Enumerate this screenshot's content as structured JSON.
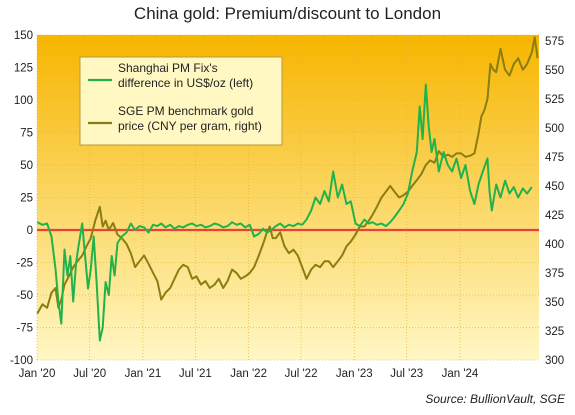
{
  "title": "China gold: Premium/discount  to London",
  "source": "Source: BullionVault, SGE",
  "chart_data": {
    "type": "line",
    "title": "China gold: Premium/discount  to London",
    "x_range": [
      "2020-01-01",
      "2024-09-30"
    ],
    "x_ticks": [
      "Jan '20",
      "Jul '20",
      "Jan '21",
      "Jul '21",
      "Jan '22",
      "Jul '22",
      "Jan '23",
      "Jul '23",
      "Jan '24"
    ],
    "x_tick_dates": [
      "2020-01-01",
      "2020-07-01",
      "2021-01-01",
      "2021-07-01",
      "2022-01-01",
      "2022-07-01",
      "2023-01-01",
      "2023-07-01",
      "2024-01-01"
    ],
    "y_left": {
      "min": -100,
      "max": 150,
      "ticks": [
        150,
        125,
        100,
        75,
        50,
        25,
        0,
        -25,
        -50,
        -75,
        -100
      ]
    },
    "y_right": {
      "min": 300,
      "max": 580,
      "ticks": [
        575,
        550,
        525,
        500,
        475,
        450,
        425,
        400,
        375,
        350,
        325,
        300
      ]
    },
    "zero_line": {
      "value": 0,
      "color": "#e8423a"
    },
    "background_gradient": [
      "#f7b500",
      "#fff7c4"
    ],
    "series": [
      {
        "name": "Shanghai PM Fix's difference in US$/oz (left)",
        "legend_lines": [
          "Shanghai PM Fix's",
          "difference in US$/oz (left)"
        ],
        "axis": "left",
        "color": "#22b24c",
        "points": [
          [
            "2020-01-02",
            6
          ],
          [
            "2020-01-20",
            4
          ],
          [
            "2020-02-05",
            5
          ],
          [
            "2020-02-20",
            -5
          ],
          [
            "2020-03-05",
            -30
          ],
          [
            "2020-03-15",
            -55
          ],
          [
            "2020-03-25",
            -72
          ],
          [
            "2020-04-05",
            -15
          ],
          [
            "2020-04-15",
            -35
          ],
          [
            "2020-04-25",
            -20
          ],
          [
            "2020-05-05",
            -55
          ],
          [
            "2020-05-15",
            -25
          ],
          [
            "2020-05-25",
            -10
          ],
          [
            "2020-06-05",
            5
          ],
          [
            "2020-06-15",
            -20
          ],
          [
            "2020-06-25",
            -45
          ],
          [
            "2020-07-05",
            -30
          ],
          [
            "2020-07-15",
            -5
          ],
          [
            "2020-07-25",
            -40
          ],
          [
            "2020-08-05",
            -85
          ],
          [
            "2020-08-15",
            -75
          ],
          [
            "2020-08-25",
            -40
          ],
          [
            "2020-09-05",
            -50
          ],
          [
            "2020-09-15",
            -20
          ],
          [
            "2020-09-25",
            -35
          ],
          [
            "2020-10-05",
            -10
          ],
          [
            "2020-10-20",
            -5
          ],
          [
            "2020-11-05",
            -2
          ],
          [
            "2020-11-20",
            5
          ],
          [
            "2020-12-05",
            0
          ],
          [
            "2020-12-20",
            3
          ],
          [
            "2021-01-05",
            2
          ],
          [
            "2021-01-20",
            -2
          ],
          [
            "2021-02-05",
            4
          ],
          [
            "2021-02-20",
            3
          ],
          [
            "2021-03-05",
            5
          ],
          [
            "2021-03-20",
            2
          ],
          [
            "2021-04-05",
            4
          ],
          [
            "2021-04-20",
            1
          ],
          [
            "2021-05-05",
            3
          ],
          [
            "2021-05-20",
            2
          ],
          [
            "2021-06-05",
            4
          ],
          [
            "2021-06-20",
            5
          ],
          [
            "2021-07-05",
            3
          ],
          [
            "2021-07-20",
            4
          ],
          [
            "2021-08-05",
            2
          ],
          [
            "2021-08-20",
            3
          ],
          [
            "2021-09-05",
            5
          ],
          [
            "2021-09-20",
            4
          ],
          [
            "2021-10-05",
            2
          ],
          [
            "2021-10-20",
            3
          ],
          [
            "2021-11-05",
            6
          ],
          [
            "2021-11-20",
            4
          ],
          [
            "2021-12-05",
            5
          ],
          [
            "2021-12-20",
            2
          ],
          [
            "2022-01-05",
            4
          ],
          [
            "2022-01-20",
            -5
          ],
          [
            "2022-02-05",
            -3
          ],
          [
            "2022-02-20",
            1
          ],
          [
            "2022-03-05",
            -2
          ],
          [
            "2022-03-20",
            0
          ],
          [
            "2022-04-05",
            3
          ],
          [
            "2022-04-20",
            5
          ],
          [
            "2022-05-05",
            2
          ],
          [
            "2022-05-20",
            4
          ],
          [
            "2022-06-05",
            3
          ],
          [
            "2022-06-20",
            5
          ],
          [
            "2022-07-05",
            4
          ],
          [
            "2022-07-20",
            8
          ],
          [
            "2022-08-05",
            15
          ],
          [
            "2022-08-20",
            25
          ],
          [
            "2022-09-05",
            20
          ],
          [
            "2022-09-20",
            30
          ],
          [
            "2022-10-05",
            22
          ],
          [
            "2022-10-20",
            45
          ],
          [
            "2022-11-05",
            25
          ],
          [
            "2022-11-20",
            35
          ],
          [
            "2022-12-05",
            20
          ],
          [
            "2022-12-20",
            22
          ],
          [
            "2023-01-05",
            5
          ],
          [
            "2023-01-20",
            3
          ],
          [
            "2023-02-05",
            8
          ],
          [
            "2023-02-20",
            5
          ],
          [
            "2023-03-05",
            6
          ],
          [
            "2023-03-20",
            4
          ],
          [
            "2023-04-05",
            5
          ],
          [
            "2023-04-20",
            3
          ],
          [
            "2023-05-05",
            6
          ],
          [
            "2023-05-20",
            10
          ],
          [
            "2023-06-05",
            15
          ],
          [
            "2023-06-20",
            20
          ],
          [
            "2023-07-05",
            28
          ],
          [
            "2023-07-20",
            45
          ],
          [
            "2023-08-05",
            60
          ],
          [
            "2023-08-15",
            95
          ],
          [
            "2023-08-25",
            70
          ],
          [
            "2023-09-05",
            112
          ],
          [
            "2023-09-15",
            80
          ],
          [
            "2023-09-25",
            60
          ],
          [
            "2023-10-05",
            70
          ],
          [
            "2023-10-20",
            45
          ],
          [
            "2023-11-05",
            60
          ],
          [
            "2023-11-20",
            50
          ],
          [
            "2023-12-05",
            45
          ],
          [
            "2023-12-20",
            55
          ],
          [
            "2024-01-05",
            40
          ],
          [
            "2024-01-20",
            50
          ],
          [
            "2024-02-05",
            30
          ],
          [
            "2024-02-20",
            20
          ],
          [
            "2024-03-05",
            35
          ],
          [
            "2024-03-20",
            45
          ],
          [
            "2024-04-05",
            55
          ],
          [
            "2024-04-12",
            30
          ],
          [
            "2024-04-20",
            15
          ],
          [
            "2024-05-05",
            35
          ],
          [
            "2024-05-20",
            25
          ],
          [
            "2024-06-05",
            38
          ],
          [
            "2024-06-20",
            28
          ],
          [
            "2024-07-05",
            33
          ],
          [
            "2024-07-20",
            25
          ],
          [
            "2024-08-05",
            32
          ],
          [
            "2024-08-20",
            28
          ],
          [
            "2024-09-05",
            33
          ]
        ]
      },
      {
        "name": "SGE PM benchmark gold price (CNY per gram, right)",
        "legend_lines": [
          "SGE PM benchmark gold",
          "price (CNY per gram, right)"
        ],
        "axis": "right",
        "color": "#8a7d12",
        "points": [
          [
            "2020-01-02",
            340
          ],
          [
            "2020-01-20",
            348
          ],
          [
            "2020-02-05",
            345
          ],
          [
            "2020-02-20",
            358
          ],
          [
            "2020-03-05",
            362
          ],
          [
            "2020-03-15",
            345
          ],
          [
            "2020-03-25",
            352
          ],
          [
            "2020-04-05",
            365
          ],
          [
            "2020-04-20",
            372
          ],
          [
            "2020-05-05",
            380
          ],
          [
            "2020-05-20",
            385
          ],
          [
            "2020-06-05",
            390
          ],
          [
            "2020-06-20",
            398
          ],
          [
            "2020-07-05",
            405
          ],
          [
            "2020-07-20",
            420
          ],
          [
            "2020-08-05",
            432
          ],
          [
            "2020-08-15",
            415
          ],
          [
            "2020-08-25",
            420
          ],
          [
            "2020-09-05",
            412
          ],
          [
            "2020-09-20",
            418
          ],
          [
            "2020-10-05",
            408
          ],
          [
            "2020-10-20",
            405
          ],
          [
            "2020-11-05",
            400
          ],
          [
            "2020-11-20",
            392
          ],
          [
            "2020-12-05",
            380
          ],
          [
            "2020-12-20",
            385
          ],
          [
            "2021-01-05",
            390
          ],
          [
            "2021-01-20",
            383
          ],
          [
            "2021-02-05",
            375
          ],
          [
            "2021-02-20",
            368
          ],
          [
            "2021-03-05",
            352
          ],
          [
            "2021-03-20",
            358
          ],
          [
            "2021-04-05",
            362
          ],
          [
            "2021-04-20",
            370
          ],
          [
            "2021-05-05",
            378
          ],
          [
            "2021-05-20",
            382
          ],
          [
            "2021-06-05",
            380
          ],
          [
            "2021-06-20",
            370
          ],
          [
            "2021-07-05",
            372
          ],
          [
            "2021-07-20",
            365
          ],
          [
            "2021-08-05",
            368
          ],
          [
            "2021-08-20",
            362
          ],
          [
            "2021-09-05",
            365
          ],
          [
            "2021-09-20",
            370
          ],
          [
            "2021-10-05",
            362
          ],
          [
            "2021-10-20",
            368
          ],
          [
            "2021-11-05",
            378
          ],
          [
            "2021-11-20",
            375
          ],
          [
            "2021-12-05",
            370
          ],
          [
            "2021-12-20",
            372
          ],
          [
            "2022-01-05",
            375
          ],
          [
            "2022-01-20",
            380
          ],
          [
            "2022-02-05",
            390
          ],
          [
            "2022-02-20",
            400
          ],
          [
            "2022-03-05",
            410
          ],
          [
            "2022-03-15",
            415
          ],
          [
            "2022-03-25",
            405
          ],
          [
            "2022-04-05",
            405
          ],
          [
            "2022-04-20",
            410
          ],
          [
            "2022-05-05",
            398
          ],
          [
            "2022-05-20",
            392
          ],
          [
            "2022-06-05",
            395
          ],
          [
            "2022-06-20",
            390
          ],
          [
            "2022-07-05",
            380
          ],
          [
            "2022-07-20",
            370
          ],
          [
            "2022-08-05",
            378
          ],
          [
            "2022-08-20",
            382
          ],
          [
            "2022-09-05",
            380
          ],
          [
            "2022-09-20",
            385
          ],
          [
            "2022-10-05",
            385
          ],
          [
            "2022-10-20",
            380
          ],
          [
            "2022-11-05",
            385
          ],
          [
            "2022-11-20",
            390
          ],
          [
            "2022-12-05",
            398
          ],
          [
            "2022-12-20",
            402
          ],
          [
            "2023-01-05",
            408
          ],
          [
            "2023-01-20",
            415
          ],
          [
            "2023-02-05",
            415
          ],
          [
            "2023-02-20",
            420
          ],
          [
            "2023-03-05",
            425
          ],
          [
            "2023-03-20",
            432
          ],
          [
            "2023-04-05",
            440
          ],
          [
            "2023-04-20",
            445
          ],
          [
            "2023-05-05",
            450
          ],
          [
            "2023-05-20",
            445
          ],
          [
            "2023-06-05",
            440
          ],
          [
            "2023-06-20",
            442
          ],
          [
            "2023-07-05",
            445
          ],
          [
            "2023-07-20",
            450
          ],
          [
            "2023-08-05",
            455
          ],
          [
            "2023-08-20",
            460
          ],
          [
            "2023-09-05",
            468
          ],
          [
            "2023-09-20",
            472
          ],
          [
            "2023-10-05",
            470
          ],
          [
            "2023-10-20",
            480
          ],
          [
            "2023-11-05",
            475
          ],
          [
            "2023-11-20",
            477
          ],
          [
            "2023-12-05",
            475
          ],
          [
            "2023-12-20",
            478
          ],
          [
            "2024-01-05",
            478
          ],
          [
            "2024-01-20",
            475
          ],
          [
            "2024-02-05",
            476
          ],
          [
            "2024-02-20",
            478
          ],
          [
            "2024-03-05",
            495
          ],
          [
            "2024-03-15",
            510
          ],
          [
            "2024-03-25",
            515
          ],
          [
            "2024-04-05",
            525
          ],
          [
            "2024-04-15",
            555
          ],
          [
            "2024-04-25",
            550
          ],
          [
            "2024-05-05",
            548
          ],
          [
            "2024-05-20",
            568
          ],
          [
            "2024-06-05",
            550
          ],
          [
            "2024-06-20",
            545
          ],
          [
            "2024-07-05",
            555
          ],
          [
            "2024-07-20",
            560
          ],
          [
            "2024-08-05",
            550
          ],
          [
            "2024-08-20",
            555
          ],
          [
            "2024-09-05",
            565
          ],
          [
            "2024-09-15",
            578
          ],
          [
            "2024-09-25",
            560
          ]
        ]
      }
    ]
  }
}
